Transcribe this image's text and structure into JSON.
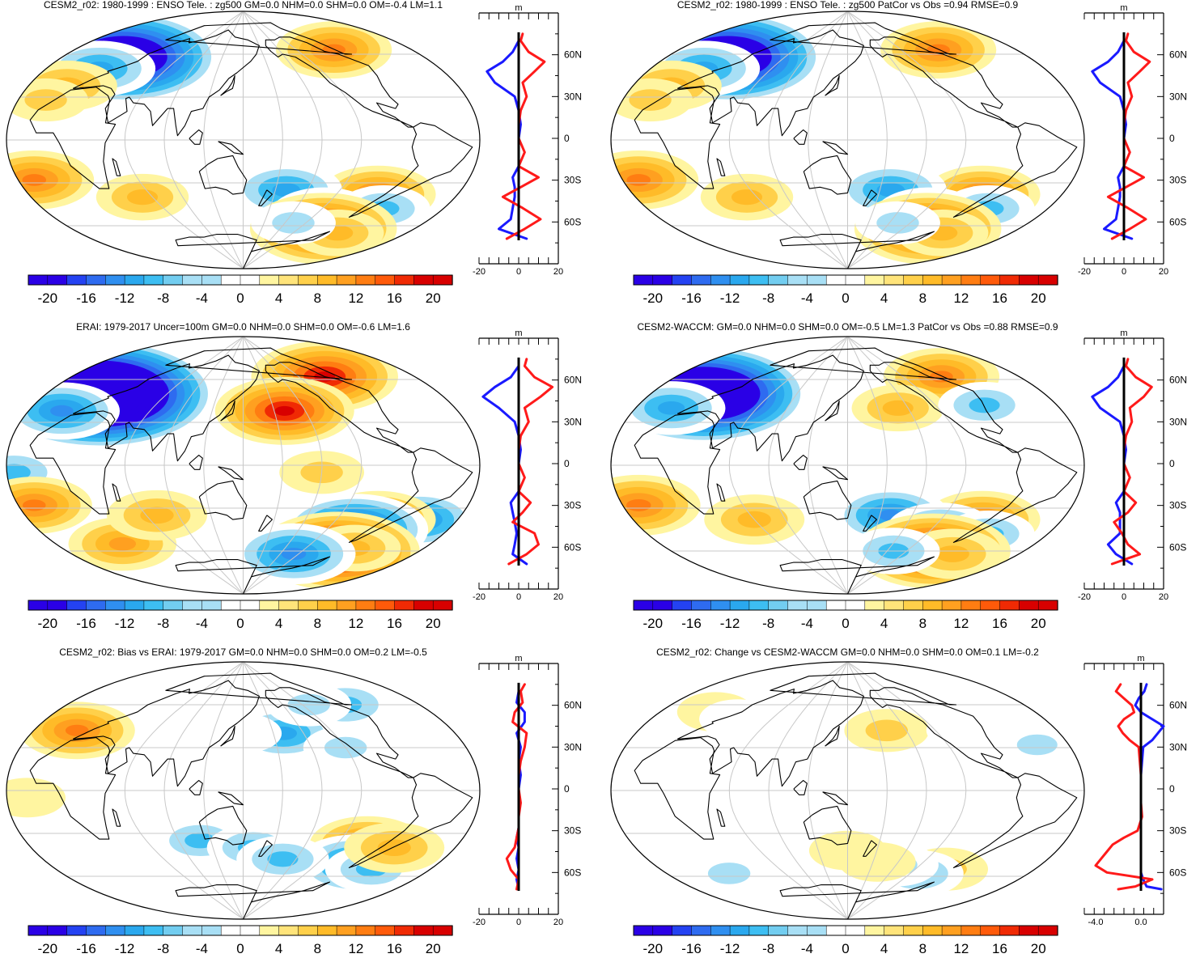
{
  "colors": {
    "land": "#000000",
    "grid": "#c8c8c8",
    "line_pos": "#ff1a1a",
    "line_neg": "#1a1aff",
    "palette": [
      "#2a00e6",
      "#2442f2",
      "#2e6bf0",
      "#2f8ff0",
      "#2aa8ee",
      "#3dbef2",
      "#72cdf0",
      "#a8dff5",
      "#ffffff",
      "#ffffff",
      "#fff5a0",
      "#ffe47a",
      "#ffd04a",
      "#ffbb28",
      "#ffa020",
      "#ff7d12",
      "#ff5a0a",
      "#f02a04",
      "#d80000"
    ]
  },
  "colorbar": {
    "labels": [
      "-20",
      "-16",
      "-12",
      "-8",
      "-4",
      "0",
      "4",
      "8",
      "12",
      "16",
      "20"
    ]
  },
  "panels": [
    {
      "title": "CESM2_r02: 1980-1999 : ENSO Tele. : zg500 GM=0.0 NHM=0.0 SHM=0.0 OM=-0.4 LM=1.1",
      "units": "m",
      "lat_labels": [
        "60N",
        "30N",
        "0",
        "30S",
        "60S"
      ],
      "x_ticks": [
        "-20",
        "0",
        "20"
      ],
      "anomalies": [
        [
          -22,
          58,
          -34
        ],
        [
          -20,
          50,
          -13
        ],
        [
          -58,
          63,
          14
        ],
        [
          -20,
          38,
          10
        ],
        [
          -20,
          28,
          6
        ],
        [
          -30,
          -28,
          15
        ],
        [
          -80,
          -38,
          14
        ],
        [
          -170,
          -35,
          -13
        ],
        [
          -110,
          -52,
          -12
        ],
        [
          -50,
          -48,
          -8
        ],
        [
          -80,
          -62,
          22
        ],
        [
          -40,
          -65,
          8
        ],
        [
          50,
          -40,
          8
        ],
        [
          -138,
          -58,
          -6
        ]
      ],
      "profile": {
        "lat": [
          -72,
          -65,
          -58,
          -50,
          -42,
          -35,
          -28,
          -20,
          -10,
          0,
          10,
          20,
          30,
          40,
          48,
          55,
          62,
          70,
          75
        ],
        "pos": [
          -6,
          3,
          11,
          2,
          -8,
          1,
          10,
          0,
          3,
          0,
          0,
          1,
          4,
          2,
          8,
          13,
          5,
          1,
          2
        ],
        "neg": [
          4,
          -10,
          -4,
          -3,
          -2,
          -2,
          -3,
          0,
          0,
          0,
          1,
          0,
          -2,
          -12,
          -16,
          -8,
          -3,
          0,
          0
        ],
        "xlim": [
          -20,
          20
        ]
      }
    },
    {
      "title": "CESM2_r02: 1980-1999 : ENSO Tele. : zg500 PatCor vs Obs =0.94 RMSE=0.9",
      "units": "m",
      "lat_labels": [
        "60N",
        "30N",
        "0",
        "30S",
        "60S"
      ],
      "x_ticks": [
        "-20",
        "0",
        "20"
      ],
      "anomalies": [
        [
          -22,
          58,
          -34
        ],
        [
          -20,
          50,
          -13
        ],
        [
          -58,
          63,
          14
        ],
        [
          -20,
          38,
          10
        ],
        [
          -20,
          28,
          6
        ],
        [
          -30,
          -28,
          15
        ],
        [
          -80,
          -38,
          14
        ],
        [
          -170,
          -35,
          -13
        ],
        [
          -110,
          -52,
          -12
        ],
        [
          -50,
          -48,
          -8
        ],
        [
          -80,
          -62,
          22
        ],
        [
          -40,
          -65,
          8
        ],
        [
          50,
          -40,
          8
        ],
        [
          -138,
          -58,
          -6
        ]
      ],
      "profile": {
        "lat": [
          -72,
          -65,
          -58,
          -50,
          -42,
          -35,
          -28,
          -20,
          -10,
          0,
          10,
          20,
          30,
          40,
          48,
          55,
          62,
          70,
          75
        ],
        "pos": [
          -6,
          3,
          11,
          2,
          -8,
          1,
          10,
          0,
          3,
          0,
          0,
          1,
          4,
          2,
          8,
          13,
          5,
          1,
          2
        ],
        "neg": [
          4,
          -10,
          -4,
          -3,
          -2,
          -2,
          -3,
          0,
          0,
          0,
          1,
          0,
          -2,
          -12,
          -16,
          -8,
          -3,
          0,
          0
        ],
        "xlim": [
          -20,
          20
        ]
      }
    },
    {
      "title": "ERAI: 1979-2017 Uncer=100m GM=0.0 NHM=0.0 SHM=0.0 OM=-0.6 LM=1.6",
      "units": "m",
      "lat_labels": [
        "60N",
        "30N",
        "0",
        "30S",
        "60S"
      ],
      "x_ticks": [
        "-20",
        "0",
        "20"
      ],
      "anomalies": [
        [
          -20,
          50,
          -44
        ],
        [
          -25,
          38,
          -14
        ],
        [
          -78,
          62,
          22
        ],
        [
          -170,
          38,
          20
        ],
        [
          -150,
          -5,
          6
        ],
        [
          -25,
          -5,
          -10
        ],
        [
          -40,
          -38,
          -14
        ],
        [
          -30,
          -28,
          14
        ],
        [
          -80,
          -38,
          14
        ],
        [
          -90,
          -45,
          -22
        ],
        [
          -65,
          -60,
          26
        ],
        [
          -10,
          -55,
          12
        ],
        [
          -50,
          -58,
          8
        ],
        [
          -128,
          -62,
          -16
        ],
        [
          70,
          -35,
          10
        ]
      ],
      "profile": {
        "lat": [
          -72,
          -65,
          -58,
          -50,
          -42,
          -35,
          -28,
          -20,
          -10,
          0,
          10,
          20,
          30,
          40,
          48,
          55,
          62,
          70,
          75
        ],
        "pos": [
          -5,
          4,
          10,
          8,
          -3,
          2,
          6,
          0,
          3,
          0,
          0,
          1,
          5,
          3,
          11,
          17,
          8,
          3,
          4
        ],
        "neg": [
          4,
          -3,
          -2,
          -1,
          -2,
          -3,
          -4,
          0,
          0,
          0,
          1,
          0,
          -2,
          -10,
          -18,
          -12,
          -4,
          0,
          0
        ],
        "xlim": [
          -20,
          20
        ]
      }
    },
    {
      "title": "CESM2-WACCM: GM=0.0 NHM=0.0 SHM=0.0 OM=-0.5 LM=1.3 PatCor vs Obs =0.88 RMSE=0.9",
      "units": "m",
      "lat_labels": [
        "60N",
        "30N",
        "0",
        "30S",
        "60S"
      ],
      "x_ticks": [
        "-20",
        "0",
        "20"
      ],
      "anomalies": [
        [
          -20,
          50,
          -38
        ],
        [
          -25,
          40,
          -12
        ],
        [
          -58,
          62,
          14
        ],
        [
          -160,
          40,
          8
        ],
        [
          -70,
          42,
          -8
        ],
        [
          -30,
          -28,
          16
        ],
        [
          -80,
          -38,
          14
        ],
        [
          -170,
          -35,
          -14
        ],
        [
          -110,
          -45,
          -12
        ],
        [
          -50,
          -48,
          -8
        ],
        [
          -80,
          -60,
          24
        ],
        [
          -40,
          -62,
          10
        ],
        [
          -140,
          -60,
          -8
        ],
        [
          60,
          -38,
          10
        ]
      ],
      "profile": {
        "lat": [
          -72,
          -65,
          -58,
          -50,
          -42,
          -35,
          -28,
          -20,
          -10,
          0,
          10,
          20,
          30,
          40,
          48,
          55,
          62,
          70,
          75
        ],
        "pos": [
          -6,
          8,
          2,
          -1,
          -5,
          2,
          6,
          0,
          3,
          0,
          0,
          1,
          4,
          3,
          10,
          14,
          6,
          1,
          2
        ],
        "neg": [
          4,
          -4,
          -8,
          -2,
          -2,
          -2,
          -4,
          0,
          0,
          0,
          1,
          0,
          -2,
          -12,
          -16,
          -8,
          -3,
          0,
          0
        ],
        "xlim": [
          -20,
          20
        ]
      }
    },
    {
      "title": "CESM2_r02: Bias vs ERAI: 1979-2017 GM=0.0 NHM=0.0 SHM=0.0 OM=0.2 LM=-0.5",
      "units": "m",
      "lat_labels": [
        "60N",
        "30N",
        "0",
        "30S",
        "60S"
      ],
      "x_ticks": [
        "-20",
        "0",
        "20"
      ],
      "anomalies": [
        [
          -20,
          42,
          14
        ],
        [
          -55,
          60,
          -10
        ],
        [
          -170,
          40,
          -12
        ],
        [
          -120,
          30,
          -6
        ],
        [
          -15,
          -5,
          4
        ],
        [
          -90,
          -38,
          14
        ],
        [
          -70,
          -52,
          -16
        ],
        [
          -40,
          -55,
          -8
        ],
        [
          -60,
          -40,
          10
        ],
        [
          110,
          -35,
          -8
        ],
        [
          160,
          -40,
          -8
        ],
        [
          -165,
          -48,
          -8
        ],
        [
          -110,
          60,
          -6
        ],
        [
          150,
          40,
          -4
        ]
      ],
      "profile": {
        "lat": [
          -72,
          -65,
          -58,
          -50,
          -42,
          -35,
          -28,
          -20,
          -10,
          0,
          10,
          20,
          30,
          40,
          48,
          55,
          62,
          70,
          75
        ],
        "pos": [
          -1,
          0,
          -4,
          -6,
          -2,
          -1,
          0,
          0,
          1,
          0,
          0,
          1,
          3,
          4,
          -3,
          -2,
          2,
          1,
          3
        ],
        "neg": [
          0,
          -1,
          0,
          -1,
          0,
          -1,
          0,
          0,
          0,
          0,
          1,
          0,
          1,
          -1,
          3,
          3,
          -1,
          0,
          0
        ],
        "xlim": [
          -20,
          20
        ]
      }
    },
    {
      "title": "CESM2_r02: Change vs CESM2-WACCM GM=0.0 NHM=0.0 SHM=0.0 OM=0.1 LM=-0.2",
      "units": "m",
      "lat_labels": [
        "60N",
        "30N",
        "0",
        "30S",
        "60S"
      ],
      "x_ticks": [
        "-4.0",
        "0.0"
      ],
      "anomalies": [
        [
          -170,
          42,
          6
        ],
        [
          -110,
          25,
          -4
        ],
        [
          -40,
          32,
          -5
        ],
        [
          -25,
          55,
          4
        ],
        [
          -90,
          42,
          -4
        ],
        [
          -10,
          -25,
          -3
        ],
        [
          -80,
          -55,
          6
        ],
        [
          -20,
          -58,
          -6
        ],
        [
          -110,
          -58,
          -8
        ],
        [
          -150,
          -52,
          -6
        ],
        [
          120,
          -45,
          -4
        ],
        [
          150,
          -42,
          4
        ],
        [
          -175,
          -50,
          4
        ],
        [
          20,
          50,
          -4
        ]
      ],
      "profile": {
        "lat": [
          -72,
          -70,
          -65,
          -60,
          -55,
          -50,
          -45,
          -40,
          -35,
          -30,
          -20,
          -10,
          0,
          10,
          20,
          30,
          35,
          40,
          45,
          50,
          55,
          60,
          65,
          70,
          75
        ],
        "pos": [
          -2.0,
          -0.5,
          1.0,
          -3.0,
          -4.0,
          -3.5,
          -3.0,
          -2.5,
          -1.5,
          -0.3,
          0.1,
          0.0,
          0.0,
          0.0,
          -0.1,
          -0.2,
          -1.0,
          -1.6,
          -2.0,
          -1.5,
          -0.6,
          -0.8,
          -1.5,
          -2.2,
          -1.8
        ],
        "neg": [
          1.8,
          0.5,
          0.2,
          0.0,
          0.0,
          0.0,
          0.0,
          0.0,
          0.0,
          0.0,
          0.0,
          0.0,
          0.0,
          0.0,
          0.1,
          0.2,
          1.0,
          1.5,
          2.0,
          1.0,
          0.0,
          -0.5,
          -0.2,
          0.3,
          0.5
        ],
        "xlim": [
          -5.0,
          2.0
        ]
      }
    }
  ]
}
